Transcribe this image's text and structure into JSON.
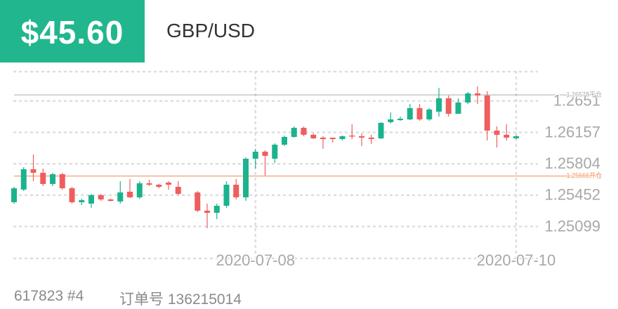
{
  "header": {
    "price": "$45.60",
    "pair": "GBP/USD"
  },
  "footer": {
    "account": "617823 #4",
    "order": "订单号 136215014"
  },
  "chart_data": {
    "type": "candlestick",
    "categories": [
      null,
      null,
      null,
      null,
      null,
      null,
      null,
      null,
      null,
      null,
      null,
      null,
      null,
      null,
      null,
      null,
      null,
      null,
      null,
      null,
      null,
      null,
      null,
      null,
      null,
      "2020-07-08",
      null,
      null,
      null,
      null,
      null,
      null,
      null,
      null,
      null,
      null,
      null,
      null,
      null,
      null,
      null,
      null,
      null,
      null,
      null,
      null,
      null,
      null,
      null,
      null,
      null,
      null,
      "2020-07-10"
    ],
    "open": [
      1.25372,
      1.25514,
      1.25743,
      1.25703,
      1.25577,
      1.25687,
      1.25529,
      1.25372,
      1.25356,
      1.25451,
      1.25403,
      1.2538,
      1.2549,
      1.25427,
      1.25585,
      1.25569,
      1.25593,
      1.25545,
      null,
      1.25482,
      1.25277,
      1.25253,
      1.25332,
      1.25569,
      1.25427,
      1.25861,
      1.2594,
      1.25861,
      1.26019,
      1.26106,
      1.26208,
      1.2613,
      1.26098,
      1.26098,
      1.26082,
      1.26122,
      1.26114,
      1.26098,
      1.2609,
      1.26272,
      1.26295,
      1.26303,
      1.2643,
      1.26303,
      1.2639,
      1.2654,
      1.26366,
      1.26493,
      1.26595,
      1.26572,
      1.26177,
      1.2613,
      1.2609
    ],
    "high": [
      1.25545,
      1.25766,
      1.25908,
      1.25751,
      1.25703,
      1.25703,
      1.25545,
      1.25411,
      1.25466,
      1.25466,
      1.25411,
      1.25608,
      1.25632,
      1.25608,
      1.25624,
      1.25577,
      1.25608,
      1.25608,
      null,
      1.25498,
      1.25356,
      1.25356,
      1.25608,
      1.25632,
      1.25877,
      1.25972,
      1.25956,
      1.26035,
      1.26122,
      1.26224,
      1.26224,
      1.26145,
      1.26114,
      1.26098,
      1.26122,
      1.26248,
      1.26145,
      1.2613,
      1.26272,
      1.26382,
      1.26335,
      1.26477,
      1.26477,
      1.2643,
      1.26658,
      1.26572,
      1.2654,
      1.26611,
      1.26674,
      1.26619,
      1.26224,
      1.26248,
      1.26122
    ],
    "low": [
      1.25356,
      1.25498,
      1.25608,
      1.25553,
      1.25553,
      1.25514,
      1.25356,
      1.2534,
      1.25308,
      1.25387,
      1.2538,
      1.25356,
      1.25419,
      1.25411,
      1.25553,
      1.25529,
      1.25514,
      1.25451,
      null,
      1.25261,
      1.2508,
      1.25182,
      1.25308,
      1.25403,
      1.25387,
      1.25751,
      1.25672,
      1.25814,
      1.26003,
      1.26098,
      1.26114,
      1.26082,
      1.25972,
      1.26043,
      1.26066,
      1.26082,
      1.26003,
      1.26027,
      1.26082,
      1.26256,
      1.26287,
      1.26295,
      1.26287,
      1.26287,
      1.26335,
      1.26335,
      1.26366,
      1.26477,
      1.26477,
      1.26066,
      1.25987,
      1.26066,
      1.26082
    ],
    "close": [
      1.25529,
      1.25743,
      1.25703,
      1.25577,
      1.25687,
      1.25529,
      1.25372,
      1.25395,
      1.25451,
      1.25403,
      1.25387,
      1.25482,
      1.25427,
      1.25585,
      1.25569,
      1.25545,
      1.25569,
      1.25466,
      null,
      1.25277,
      1.25253,
      1.25332,
      1.25569,
      1.25427,
      1.25861,
      1.2594,
      1.25893,
      1.26019,
      1.26106,
      1.26208,
      1.2613,
      1.2609,
      1.26082,
      1.26082,
      1.26114,
      1.26114,
      1.26098,
      1.26082,
      1.26264,
      1.26303,
      1.26311,
      1.2643,
      1.26303,
      1.26414,
      1.2654,
      1.26366,
      1.26493,
      1.26595,
      1.26572,
      1.26177,
      1.2613,
      1.26098,
      1.26114
    ],
    "up_color": "#1bb38d",
    "down_color": "#ef5d5d",
    "ylim": [
      1.2474,
      1.2684
    ],
    "yticks": [
      1.25099,
      1.25452,
      1.25804,
      1.26157,
      1.2651
    ],
    "grid": true,
    "reference_lines": [
      {
        "value": 1.26578,
        "label": "1.26578平仓",
        "color": "#aaaaaa"
      },
      {
        "value": 1.25666,
        "label": "1.25666开仓",
        "color": "#f08a4b"
      }
    ]
  }
}
